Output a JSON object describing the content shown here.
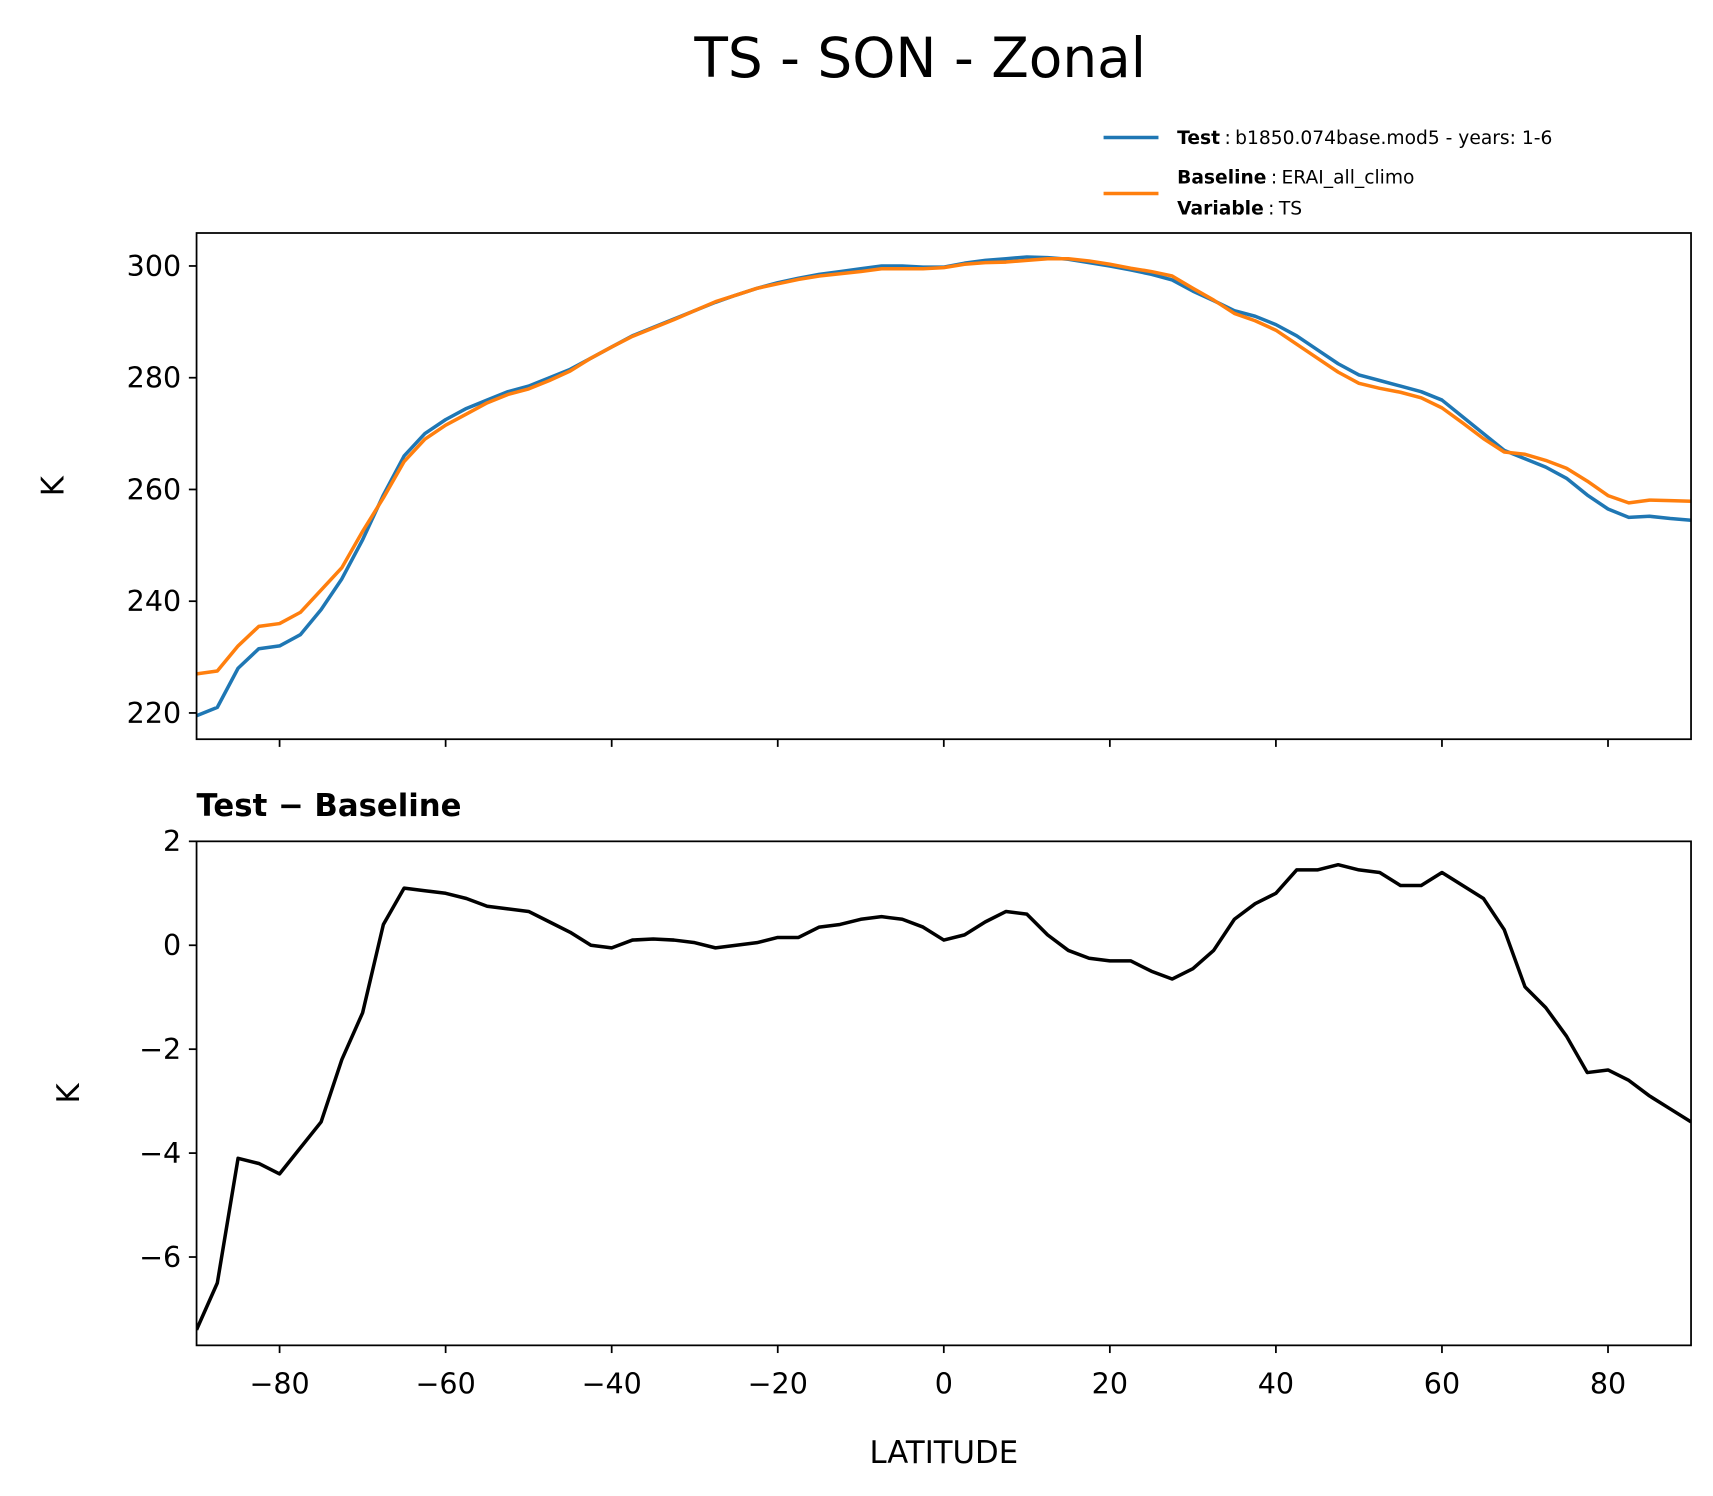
{
  "title": "TS - SON - Zonal",
  "legend": {
    "separator": ":",
    "variable": {
      "name": "Variable",
      "value": "TS"
    }
  },
  "chart_data": [
    {
      "type": "line",
      "ylabel": "K",
      "show_xticklabels": false,
      "xlim": [
        -90,
        90
      ],
      "ylim": [
        215.3,
        305.9
      ],
      "xticks": [
        -80,
        -60,
        -40,
        -20,
        0,
        20,
        40,
        60,
        80
      ],
      "yticks": [
        220,
        240,
        260,
        280,
        300
      ],
      "x": [
        -90,
        -87.5,
        -85,
        -82.5,
        -80,
        -77.5,
        -75,
        -72.5,
        -70,
        -67.5,
        -65,
        -62.5,
        -60,
        -57.5,
        -55,
        -52.5,
        -50,
        -47.5,
        -45,
        -42.5,
        -40,
        -37.5,
        -35,
        -32.5,
        -30,
        -27.5,
        -25,
        -22.5,
        -20,
        -17.5,
        -15,
        -12.5,
        -10,
        -7.5,
        -5,
        -2.5,
        0,
        2.5,
        5,
        7.5,
        10,
        12.5,
        15,
        17.5,
        20,
        22.5,
        25,
        27.5,
        30,
        32.5,
        35,
        37.5,
        40,
        42.5,
        45,
        47.5,
        50,
        52.5,
        55,
        57.5,
        60,
        62.5,
        65,
        67.5,
        70,
        72.5,
        75,
        77.5,
        80,
        82.5,
        85,
        87.5,
        90
      ],
      "series": [
        {
          "name": "Test",
          "label": "b1850.074base.mod5 - years: 1-6",
          "color": "#1f77b4",
          "values": [
            219.5,
            221,
            228,
            231.5,
            232,
            234,
            238.5,
            244,
            251,
            259,
            266,
            270,
            272.5,
            274.5,
            276,
            277.5,
            278.5,
            280,
            281.5,
            283.5,
            285.5,
            287.5,
            289,
            290.5,
            292,
            293.5,
            294.8,
            296,
            297,
            297.8,
            298.5,
            299,
            299.5,
            300,
            300,
            299.8,
            299.8,
            300.5,
            301,
            301.3,
            301.6,
            301.5,
            301.2,
            300.6,
            300,
            299.3,
            298.5,
            297.5,
            295.5,
            293.8,
            292,
            291,
            289.5,
            287.5,
            285,
            282.5,
            280.5,
            279.5,
            278.5,
            277.5,
            276,
            273,
            270,
            267,
            265.5,
            264,
            262,
            259,
            256.5,
            255,
            255.2,
            254.8,
            254.5
          ]
        },
        {
          "name": "Baseline",
          "label": "ERAI_all_climo",
          "color": "#ff7f0e",
          "values": [
            227,
            227.5,
            232,
            235.5,
            236,
            238,
            242,
            246,
            252.5,
            258.5,
            265,
            269,
            271.5,
            273.5,
            275.5,
            277,
            278,
            279.5,
            281.2,
            283.5,
            285.5,
            287.4,
            288.9,
            290.4,
            292,
            293.6,
            294.8,
            296,
            296.8,
            297.6,
            298.2,
            298.6,
            299,
            299.5,
            299.5,
            299.5,
            299.7,
            300.3,
            300.6,
            300.7,
            301,
            301.3,
            301.3,
            300.9,
            300.3,
            299.6,
            299,
            298.2,
            296,
            293.9,
            291.5,
            290.2,
            288.5,
            286,
            283.5,
            281,
            279,
            278.1,
            277.4,
            276.4,
            274.6,
            271.9,
            269.1,
            266.7,
            266.3,
            265.2,
            263.8,
            261.5,
            258.9,
            257.6,
            258.1,
            258,
            257.9
          ]
        }
      ]
    },
    {
      "type": "line",
      "title": "Test − Baseline",
      "ylabel": "K",
      "xlabel": "LATITUDE",
      "show_xticklabels": true,
      "xlim": [
        -90,
        90
      ],
      "ylim": [
        -7.7,
        2.0
      ],
      "xticks": [
        {
          "value": -80,
          "label": "−80"
        },
        {
          "value": -60,
          "label": "−60"
        },
        {
          "value": -40,
          "label": "−40"
        },
        {
          "value": -20,
          "label": "−20"
        },
        0,
        20,
        40,
        60,
        80
      ],
      "yticks": [
        {
          "value": -6,
          "label": "−6"
        },
        {
          "value": -4,
          "label": "−4"
        },
        {
          "value": -2,
          "label": "−2"
        },
        0,
        2
      ],
      "x": [
        -90,
        -87.5,
        -85,
        -82.5,
        -80,
        -77.5,
        -75,
        -72.5,
        -70,
        -67.5,
        -65,
        -62.5,
        -60,
        -57.5,
        -55,
        -52.5,
        -50,
        -47.5,
        -45,
        -42.5,
        -40,
        -37.5,
        -35,
        -32.5,
        -30,
        -27.5,
        -25,
        -22.5,
        -20,
        -17.5,
        -15,
        -12.5,
        -10,
        -7.5,
        -5,
        -2.5,
        0,
        2.5,
        5,
        7.5,
        10,
        12.5,
        15,
        17.5,
        20,
        22.5,
        25,
        27.5,
        30,
        32.5,
        35,
        37.5,
        40,
        42.5,
        45,
        47.5,
        50,
        52.5,
        55,
        57.5,
        60,
        62.5,
        65,
        67.5,
        70,
        72.5,
        75,
        77.5,
        80,
        82.5,
        85,
        87.5,
        90
      ],
      "color": "#000000",
      "values": [
        -7.4,
        -6.5,
        -4.1,
        -4.2,
        -4.4,
        -3.9,
        -3.4,
        -2.2,
        -1.3,
        0.4,
        1.1,
        1.05,
        1.0,
        0.9,
        0.75,
        0.7,
        0.65,
        0.45,
        0.25,
        0.0,
        -0.05,
        0.1,
        0.12,
        0.1,
        0.05,
        -0.05,
        0.0,
        0.05,
        0.15,
        0.15,
        0.35,
        0.4,
        0.5,
        0.55,
        0.5,
        0.35,
        0.1,
        0.2,
        0.45,
        0.65,
        0.6,
        0.2,
        -0.1,
        -0.25,
        -0.3,
        -0.3,
        -0.5,
        -0.65,
        -0.45,
        -0.1,
        0.5,
        0.8,
        1.0,
        1.45,
        1.45,
        1.55,
        1.45,
        1.4,
        1.15,
        1.15,
        1.4,
        1.15,
        0.9,
        0.3,
        -0.8,
        -1.2,
        -1.75,
        -2.45,
        -2.4,
        -2.6,
        -2.9,
        -3.15,
        -3.4
      ]
    }
  ]
}
